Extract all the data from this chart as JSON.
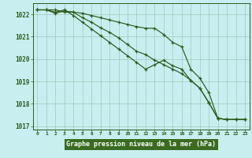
{
  "x": [
    0,
    1,
    2,
    3,
    4,
    5,
    6,
    7,
    8,
    9,
    10,
    11,
    12,
    13,
    14,
    15,
    16,
    17,
    18,
    19,
    20,
    21,
    22,
    23
  ],
  "line1": [
    1022.2,
    1022.2,
    1022.2,
    1022.1,
    1022.1,
    1022.05,
    1021.95,
    1021.85,
    1021.75,
    1021.65,
    1021.55,
    1021.45,
    1021.38,
    1021.38,
    1021.1,
    1020.75,
    1020.55,
    1019.55,
    1019.15,
    1018.5,
    1017.35,
    1017.3,
    1017.3,
    1017.3
  ],
  "line2": [
    1022.2,
    1022.2,
    1022.05,
    1022.15,
    1022.1,
    1021.85,
    1021.65,
    1021.4,
    1021.2,
    1020.95,
    1020.65,
    1020.35,
    1020.2,
    1019.95,
    1019.75,
    1019.55,
    1019.35,
    1019.05,
    1018.7,
    1018.05,
    1017.35,
    1017.3,
    1017.3,
    1017.3
  ],
  "line3": [
    1022.2,
    1022.2,
    1022.1,
    1022.2,
    1021.95,
    1021.65,
    1021.35,
    1021.05,
    1020.75,
    1020.45,
    1020.15,
    1019.85,
    1019.55,
    1019.75,
    1019.95,
    1019.7,
    1019.55,
    1019.05,
    1018.7,
    1018.05,
    1017.35,
    1017.3,
    1017.3,
    1017.3
  ],
  "ylim": [
    1016.85,
    1022.5
  ],
  "yticks": [
    1017,
    1018,
    1019,
    1020,
    1021,
    1022
  ],
  "xticks": [
    0,
    1,
    2,
    3,
    4,
    5,
    6,
    7,
    8,
    9,
    10,
    11,
    12,
    13,
    14,
    15,
    16,
    17,
    18,
    19,
    20,
    21,
    22,
    23
  ],
  "line_color": "#2d5a1b",
  "bg_color": "#c8eef0",
  "grid_color": "#a0c8b8",
  "xlabel": "Graphe pression niveau de la mer (hPa)",
  "xlabel_bg": "#3a6b20",
  "xlabel_fg": "#ffffff"
}
